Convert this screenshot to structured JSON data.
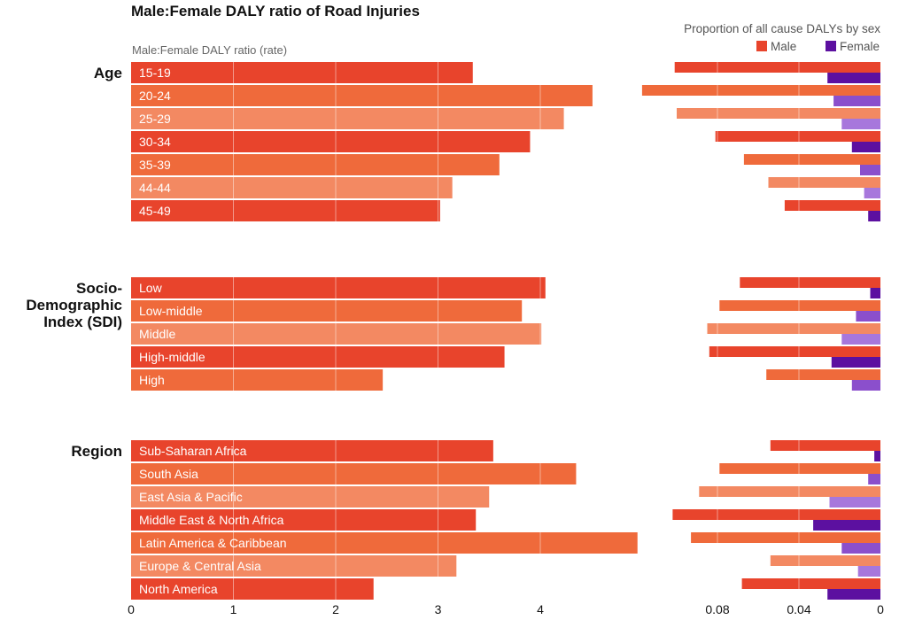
{
  "chart_data": {
    "type": "bar",
    "title": "Male:Female DALY ratio of Road Injuries",
    "left_axis_label": "Male:Female DALY ratio (rate)",
    "right_axis_label": "Proportion of all cause DALYs by sex",
    "legend": [
      {
        "name": "Male",
        "color": "#e8442c"
      },
      {
        "name": "Female",
        "color": "#5c10a0"
      }
    ],
    "left_xlim": [
      0,
      4.7
    ],
    "left_ticks": [
      0,
      1,
      2,
      3,
      4
    ],
    "left_tick_labels": [
      "0",
      "1",
      "2",
      "3",
      "4"
    ],
    "right_xlim": [
      0,
      0.1
    ],
    "right_ticks": [
      0.08,
      0.04,
      0
    ],
    "right_tick_labels": [
      "0.08",
      "0.04",
      "0"
    ],
    "groups": [
      {
        "name": "Age",
        "categories": [
          "15-19",
          "20-24",
          "25-29",
          "30-34",
          "35-39",
          "44-44",
          "45-49"
        ],
        "ratio": [
          3.34,
          4.51,
          4.23,
          3.9,
          3.6,
          3.14,
          3.02
        ],
        "male": [
          0.101,
          0.117,
          0.1,
          0.081,
          0.067,
          0.055,
          0.047
        ],
        "female": [
          0.026,
          0.023,
          0.019,
          0.014,
          0.01,
          0.008,
          0.006
        ]
      },
      {
        "name": "Socio-\nDemographic\nIndex (SDI)",
        "categories": [
          "Low",
          "Low-middle",
          "Middle",
          "High-middle",
          "High"
        ],
        "ratio": [
          4.05,
          3.82,
          4.01,
          3.65,
          2.46
        ],
        "male": [
          0.069,
          0.079,
          0.085,
          0.084,
          0.056
        ],
        "female": [
          0.005,
          0.012,
          0.019,
          0.024,
          0.014
        ]
      },
      {
        "name": "Region",
        "categories": [
          "Sub-Saharan Africa",
          "South Asia",
          "East Asia & Pacific",
          "Middle East & North Africa",
          "Latin America & Caribbean",
          "Europe & Central Asia",
          "North America"
        ],
        "ratio": [
          3.54,
          4.35,
          3.5,
          3.37,
          4.95,
          3.18,
          2.37
        ],
        "male": [
          0.054,
          0.079,
          0.089,
          0.102,
          0.093,
          0.054,
          0.068
        ],
        "female": [
          0.003,
          0.006,
          0.025,
          0.033,
          0.019,
          0.011,
          0.026
        ]
      }
    ],
    "row_colors": [
      "#e8442c",
      "#ef6a3b",
      "#f38962"
    ],
    "female_colors": [
      "#5c10a0",
      "#8b4fcc",
      "#a777dc"
    ],
    "grid": true
  }
}
